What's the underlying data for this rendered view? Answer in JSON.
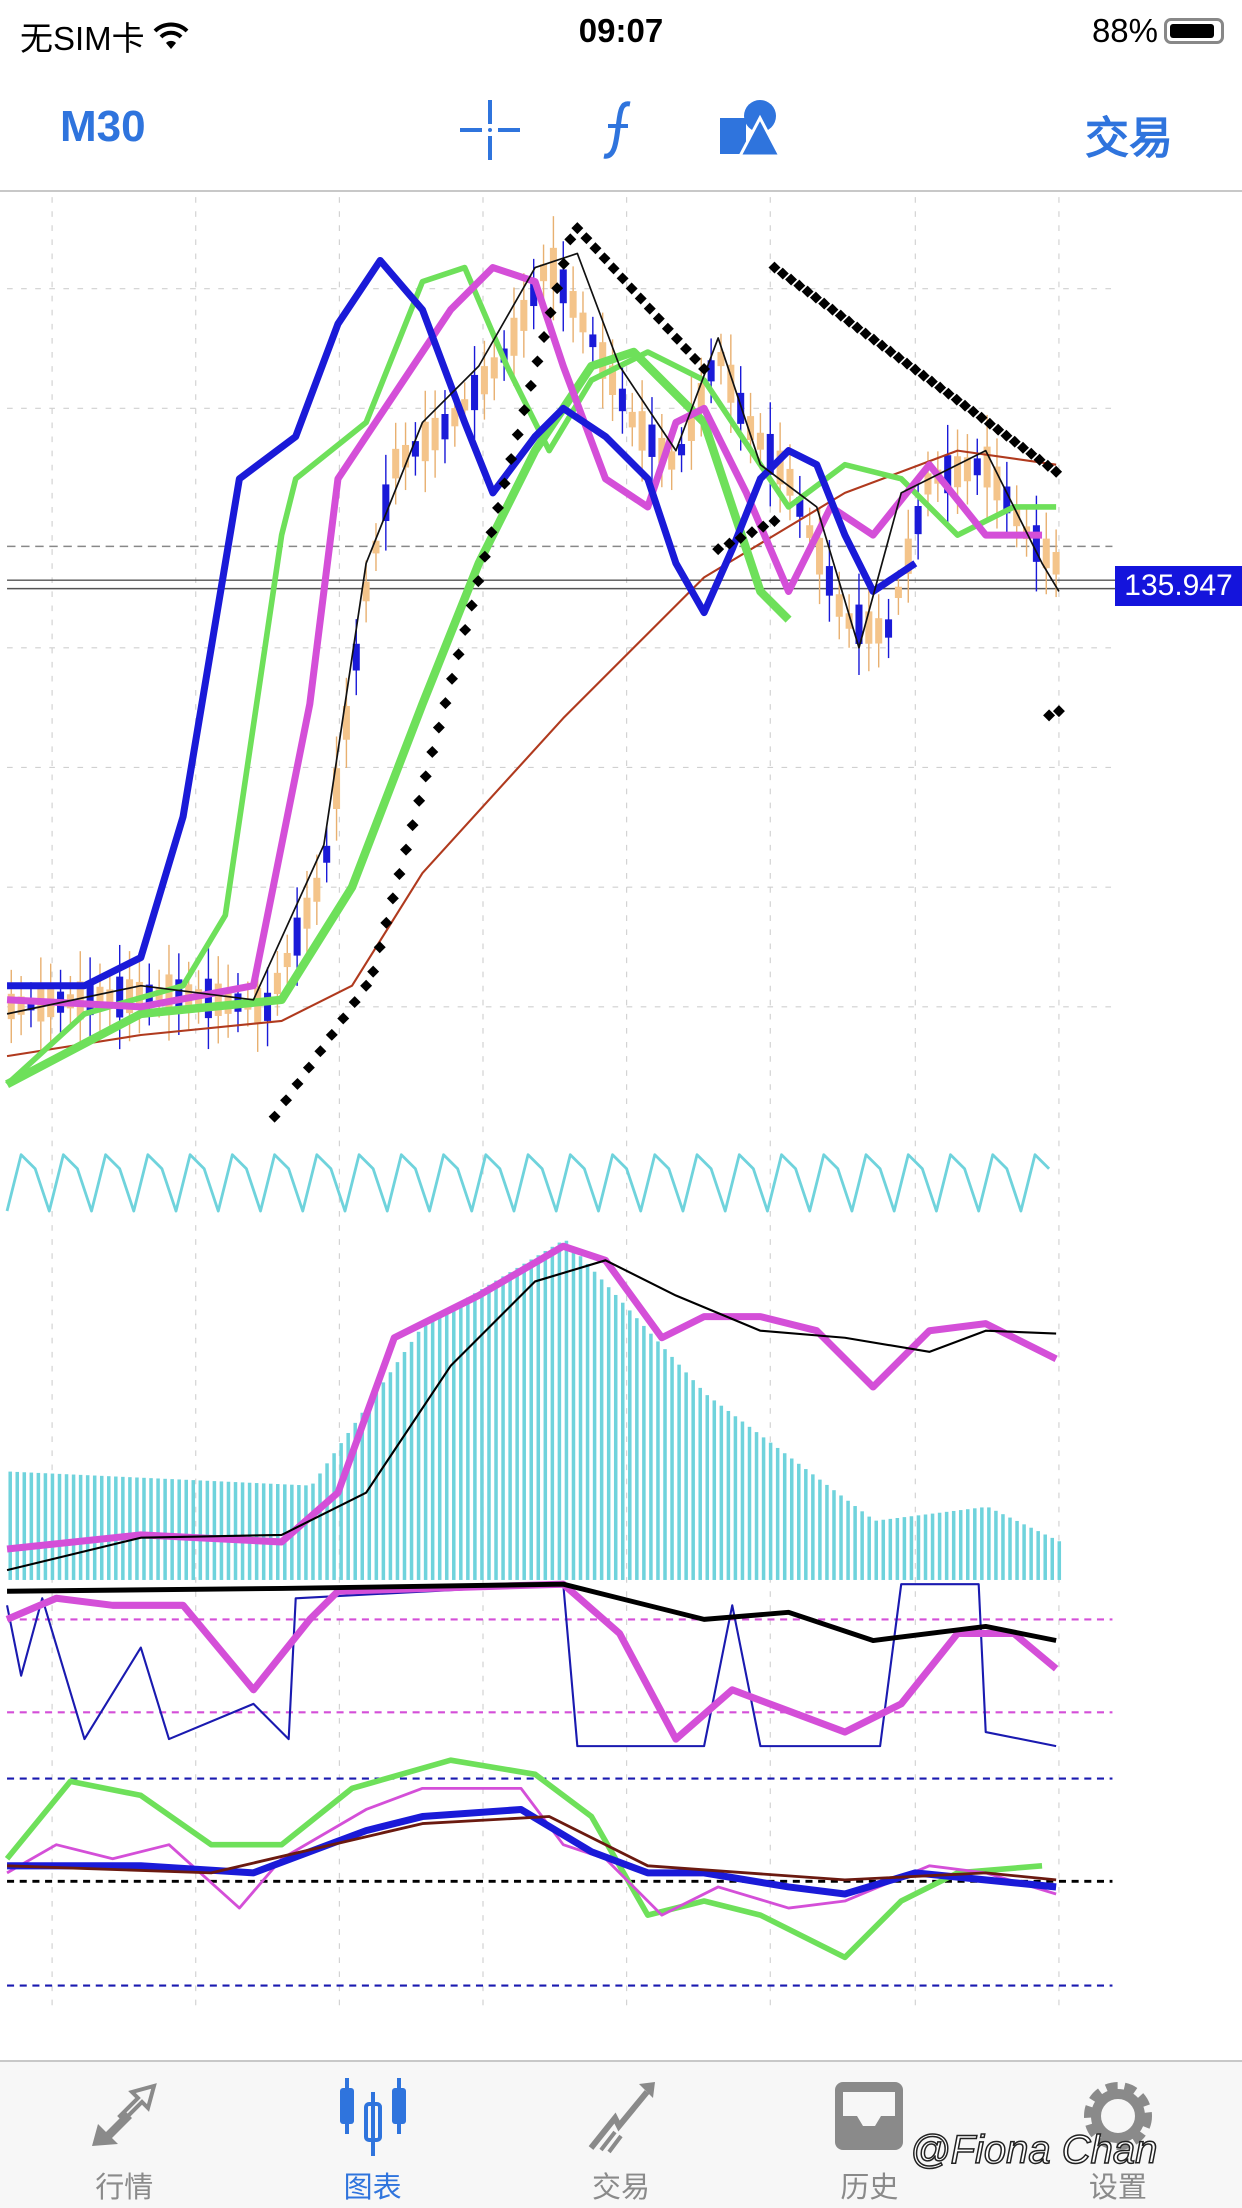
{
  "status_bar": {
    "carrier": "无SIM卡",
    "time": "09:07",
    "battery": "88%"
  },
  "toolbar": {
    "timeframe": "M30",
    "icons": [
      "crosshair-icon",
      "function-icon",
      "objects-icon"
    ],
    "trade_label": "交易"
  },
  "chart": {
    "current_price": "135.947",
    "colors": {
      "accent": "#2f74dd",
      "price_tag": "#1414dc",
      "blue": "#1a1ad8",
      "green": "#6ee05a",
      "magenta": "#d44fd8",
      "cyan": "#6fd3dc",
      "brown": "#b03a1e"
    }
  },
  "tabbar": {
    "items": [
      {
        "label": "行情",
        "icon": "quotes-icon"
      },
      {
        "label": "图表",
        "icon": "chart-candles-icon",
        "active": true
      },
      {
        "label": "交易",
        "icon": "trade-icon"
      },
      {
        "label": "历史",
        "icon": "history-icon"
      },
      {
        "label": "设置",
        "icon": "gear-icon"
      }
    ]
  },
  "watermark": "@Fiona Chan"
}
